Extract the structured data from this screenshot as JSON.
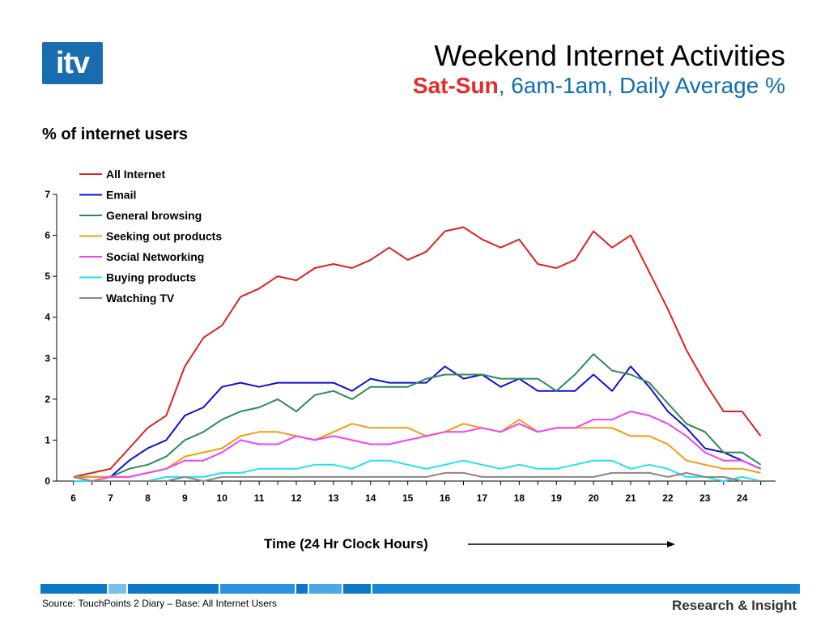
{
  "header": {
    "logo_text": "itv",
    "title": "Weekend Internet Activities",
    "subtitle_red": "Sat-Sun",
    "subtitle_rest": ", 6am-1am, Daily Average %"
  },
  "footer": {
    "source": "Source: TouchPoints 2 Diary  – Base: All Internet Users",
    "brand": "Research & Insight"
  },
  "colors": {
    "logo_bg": "#1a6cb0",
    "subtitle_red": "#e52a2a",
    "subtitle_blue": "#0f6fb0"
  },
  "chart_data": {
    "type": "line",
    "ylabel": "% of internet users",
    "xlabel": "Time (24 Hr Clock Hours)",
    "ylim": [
      0,
      7
    ],
    "yticks": [
      0,
      1,
      2,
      3,
      4,
      5,
      6,
      7
    ],
    "xticks": [
      6,
      7,
      8,
      9,
      10,
      11,
      12,
      13,
      14,
      15,
      16,
      17,
      18,
      19,
      20,
      21,
      22,
      23,
      24
    ],
    "x": [
      6,
      6.5,
      7,
      7.5,
      8,
      8.5,
      9,
      9.5,
      10,
      10.5,
      11,
      11.5,
      12,
      12.5,
      13,
      13.5,
      14,
      14.5,
      15,
      15.5,
      16,
      16.5,
      17,
      17.5,
      18,
      18.5,
      19,
      19.5,
      20,
      20.5,
      21,
      21.5,
      22,
      22.5,
      23,
      23.5,
      24,
      24.5
    ],
    "grid": false,
    "legend_position": "top-left",
    "series": [
      {
        "name": "All Internet",
        "color": "#e02020",
        "values": [
          0.1,
          0.2,
          0.3,
          0.8,
          1.3,
          1.6,
          2.8,
          3.5,
          3.8,
          4.5,
          4.7,
          5.0,
          4.9,
          5.2,
          5.3,
          5.2,
          5.4,
          5.7,
          5.4,
          5.6,
          6.1,
          6.2,
          5.9,
          5.7,
          5.9,
          5.3,
          5.2,
          5.4,
          6.1,
          5.7,
          6.0,
          5.1,
          4.2,
          3.2,
          2.4,
          1.7,
          1.7,
          1.1
        ]
      },
      {
        "name": "Email",
        "color": "#1010d0",
        "values": [
          0.1,
          0.1,
          0.1,
          0.5,
          0.8,
          1.0,
          1.6,
          1.8,
          2.3,
          2.4,
          2.3,
          2.4,
          2.4,
          2.4,
          2.4,
          2.2,
          2.5,
          2.4,
          2.4,
          2.4,
          2.8,
          2.5,
          2.6,
          2.3,
          2.5,
          2.2,
          2.2,
          2.2,
          2.6,
          2.2,
          2.8,
          2.3,
          1.7,
          1.3,
          0.8,
          0.7,
          0.5,
          0.3
        ]
      },
      {
        "name": "General browsing",
        "color": "#2e8b57",
        "values": [
          0.1,
          0.1,
          0.1,
          0.3,
          0.4,
          0.6,
          1.0,
          1.2,
          1.5,
          1.7,
          1.8,
          2.0,
          1.7,
          2.1,
          2.2,
          2.0,
          2.3,
          2.3,
          2.3,
          2.5,
          2.6,
          2.6,
          2.6,
          2.5,
          2.5,
          2.5,
          2.2,
          2.6,
          3.1,
          2.7,
          2.6,
          2.4,
          1.9,
          1.4,
          1.2,
          0.7,
          0.7,
          0.4
        ]
      },
      {
        "name": "Seeking out products",
        "color": "#f39c12",
        "values": [
          0.1,
          0.1,
          0.1,
          0.1,
          0.2,
          0.3,
          0.6,
          0.7,
          0.8,
          1.1,
          1.2,
          1.2,
          1.1,
          1.0,
          1.2,
          1.4,
          1.3,
          1.3,
          1.3,
          1.1,
          1.2,
          1.4,
          1.3,
          1.2,
          1.5,
          1.2,
          1.3,
          1.3,
          1.3,
          1.3,
          1.1,
          1.1,
          0.9,
          0.5,
          0.4,
          0.3,
          0.3,
          0.2
        ]
      },
      {
        "name": "Social Networking",
        "color": "#ee44ee",
        "values": [
          0.1,
          0.0,
          0.1,
          0.1,
          0.2,
          0.3,
          0.5,
          0.5,
          0.7,
          1.0,
          0.9,
          0.9,
          1.1,
          1.0,
          1.1,
          1.0,
          0.9,
          0.9,
          1.0,
          1.1,
          1.2,
          1.2,
          1.3,
          1.2,
          1.4,
          1.2,
          1.3,
          1.3,
          1.5,
          1.5,
          1.7,
          1.6,
          1.4,
          1.1,
          0.7,
          0.5,
          0.5,
          0.3
        ]
      },
      {
        "name": "Buying products",
        "color": "#22e0f0",
        "values": [
          0.0,
          0.0,
          0.0,
          0.0,
          0.0,
          0.1,
          0.1,
          0.1,
          0.2,
          0.2,
          0.3,
          0.3,
          0.3,
          0.4,
          0.4,
          0.3,
          0.5,
          0.5,
          0.4,
          0.3,
          0.4,
          0.5,
          0.4,
          0.3,
          0.4,
          0.3,
          0.3,
          0.4,
          0.5,
          0.5,
          0.3,
          0.4,
          0.3,
          0.1,
          0.1,
          0.0,
          0.1,
          0.0
        ]
      },
      {
        "name": "Watching TV",
        "color": "#888888",
        "values": [
          0.1,
          0.0,
          0.0,
          0.0,
          0.0,
          0.0,
          0.1,
          0.0,
          0.1,
          0.1,
          0.1,
          0.1,
          0.1,
          0.1,
          0.1,
          0.1,
          0.1,
          0.1,
          0.1,
          0.1,
          0.2,
          0.2,
          0.1,
          0.1,
          0.1,
          0.1,
          0.1,
          0.1,
          0.1,
          0.2,
          0.2,
          0.2,
          0.1,
          0.2,
          0.1,
          0.1,
          0.0,
          0.0
        ]
      }
    ]
  }
}
